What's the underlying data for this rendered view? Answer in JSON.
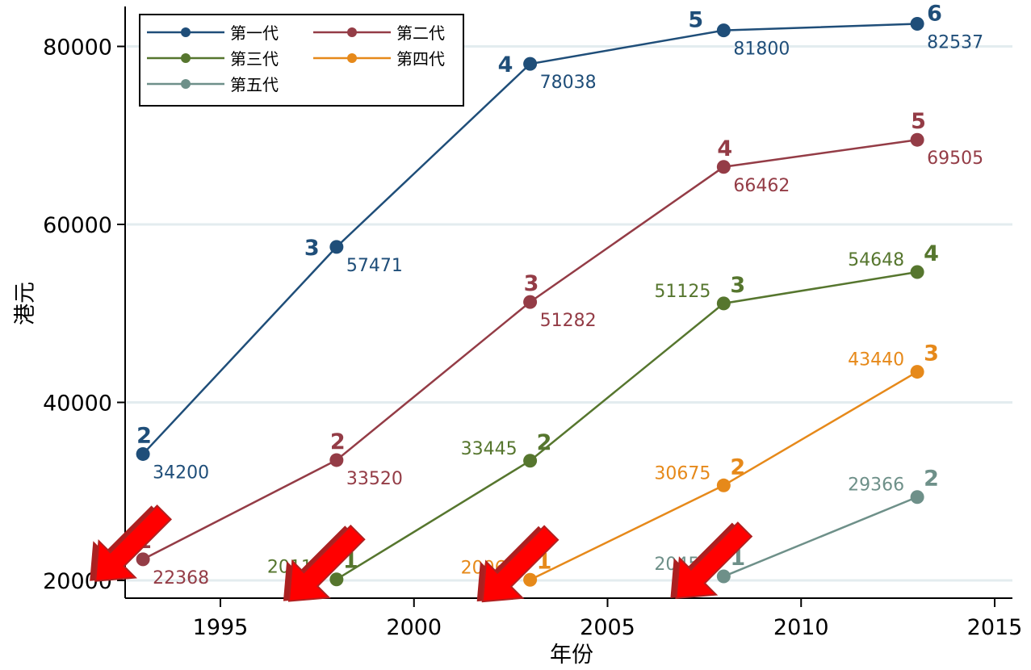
{
  "chart_data": {
    "type": "line",
    "title": "",
    "xlabel": "年份",
    "ylabel": "港元",
    "xlim": [
      1992.5,
      2015.2
    ],
    "ylim": [
      19000,
      85000
    ],
    "x_ticks": [
      1995,
      2000,
      2005,
      2010,
      2015
    ],
    "y_ticks": [
      20000,
      40000,
      60000,
      80000
    ],
    "grid": "horizontal",
    "legend_position": "top-left",
    "series": [
      {
        "name": "第一代",
        "color": "#1f4e79",
        "points": [
          {
            "x": 1993,
            "y": 34200,
            "label": "34200",
            "rank": "2"
          },
          {
            "x": 1998,
            "y": 57471,
            "label": "57471",
            "rank": "3"
          },
          {
            "x": 2003,
            "y": 78038,
            "label": "78038",
            "rank": "4"
          },
          {
            "x": 2008,
            "y": 81800,
            "label": "81800",
            "rank": "5"
          },
          {
            "x": 2013,
            "y": 82537,
            "label": "82537",
            "rank": "6"
          }
        ]
      },
      {
        "name": "第二代",
        "color": "#943c46",
        "points": [
          {
            "x": 1993,
            "y": 22368,
            "label": "22368",
            "rank": "1"
          },
          {
            "x": 1998,
            "y": 33520,
            "label": "33520",
            "rank": "2"
          },
          {
            "x": 2003,
            "y": 51282,
            "label": "51282",
            "rank": "3"
          },
          {
            "x": 2008,
            "y": 66462,
            "label": "66462",
            "rank": "4"
          },
          {
            "x": 2013,
            "y": 69505,
            "label": "69505",
            "rank": "5"
          }
        ]
      },
      {
        "name": "第三代",
        "color": "#56762e",
        "points": [
          {
            "x": 1998,
            "y": 20115,
            "label": "20115",
            "rank": "1"
          },
          {
            "x": 2003,
            "y": 33445,
            "label": "33445",
            "rank": "2"
          },
          {
            "x": 2008,
            "y": 51125,
            "label": "51125",
            "rank": "3"
          },
          {
            "x": 2013,
            "y": 54648,
            "label": "54648",
            "rank": "4"
          }
        ]
      },
      {
        "name": "第四代",
        "color": "#e6891a",
        "points": [
          {
            "x": 2003,
            "y": 20067,
            "label": "20067",
            "rank": "1"
          },
          {
            "x": 2008,
            "y": 30675,
            "label": "30675",
            "rank": "2"
          },
          {
            "x": 2013,
            "y": 43440,
            "label": "43440",
            "rank": "3"
          }
        ]
      },
      {
        "name": "第五代",
        "color": "#6e9089",
        "points": [
          {
            "x": 2008,
            "y": 20450,
            "label": "20450",
            "rank": "1"
          },
          {
            "x": 2013,
            "y": 29366,
            "label": "29366",
            "rank": "2"
          }
        ]
      }
    ],
    "arrows": [
      {
        "x": 1993,
        "y": 22368
      },
      {
        "x": 1998,
        "y": 20115
      },
      {
        "x": 2003,
        "y": 20067
      },
      {
        "x": 2008,
        "y": 20450
      }
    ],
    "arrow_color": "#ff0000"
  }
}
